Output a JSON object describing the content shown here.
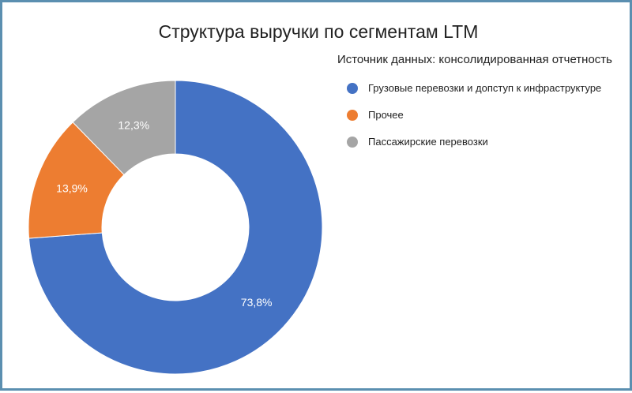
{
  "chart_data": {
    "type": "pie",
    "donut": true,
    "title": "Структура выручки по сегментам LTM",
    "subtitle": "Источник данных: консолидированная отчетность",
    "legend_position": "top-right",
    "slices": [
      {
        "name": "Грузовые перевозки и допступ к инфраструктуре",
        "value": 73.8,
        "label": "73,8%",
        "color": "#4472c4"
      },
      {
        "name": "Прочее",
        "value": 13.9,
        "label": "13,9%",
        "color": "#ed7d31"
      },
      {
        "name": "Пассажирские перевозки",
        "value": 12.3,
        "label": "12,3%",
        "color": "#a5a5a5"
      }
    ]
  }
}
